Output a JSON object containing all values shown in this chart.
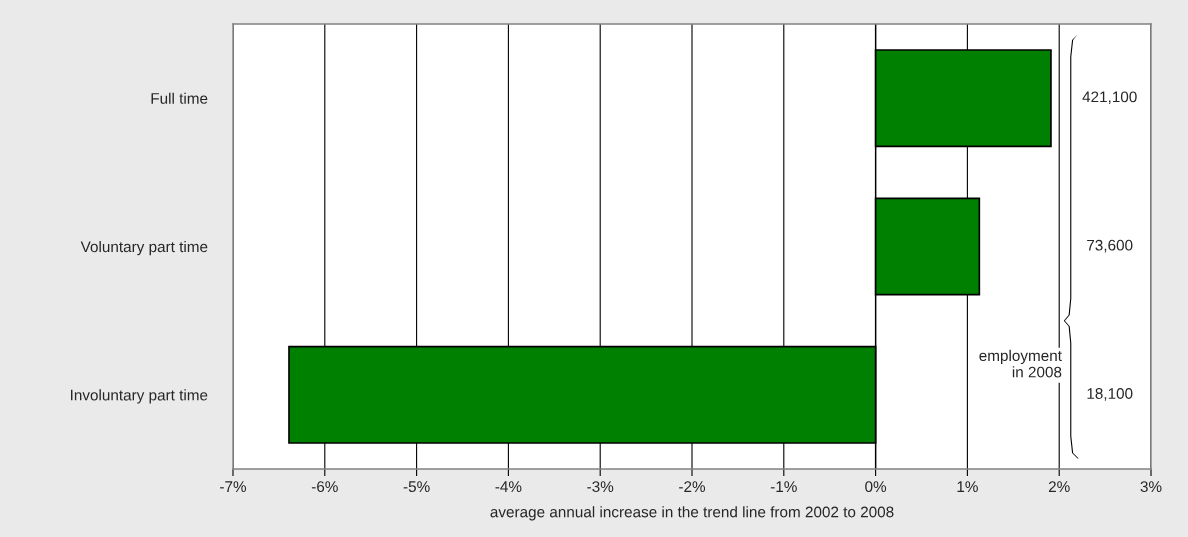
{
  "chart_data": {
    "type": "bar",
    "orientation": "horizontal",
    "xlabel": "average annual increase in the trend line from 2002 to 2008",
    "categories": [
      "Full time",
      "Voluntary part time",
      "Involuntary part time"
    ],
    "values": [
      1.91,
      1.13,
      -6.39
    ],
    "color": "#008000",
    "xlim": [
      -7,
      3
    ],
    "xticks": [
      {
        "value": -7,
        "label": "-7%"
      },
      {
        "value": -6,
        "label": "-6%"
      },
      {
        "value": -5,
        "label": "-5%"
      },
      {
        "value": -4,
        "label": "-4%"
      },
      {
        "value": -3,
        "label": "-3%"
      },
      {
        "value": -2,
        "label": "-2%"
      },
      {
        "value": -1,
        "label": "-1%"
      },
      {
        "value": 0,
        "label": "0%"
      },
      {
        "value": 1,
        "label": "1%"
      },
      {
        "value": 2,
        "label": "2%"
      },
      {
        "value": 3,
        "label": "3%"
      }
    ],
    "grid": "x",
    "legend": false,
    "annotations": [
      "421,100",
      "73,600",
      "18,100",
      "employment\nin 2008"
    ]
  }
}
